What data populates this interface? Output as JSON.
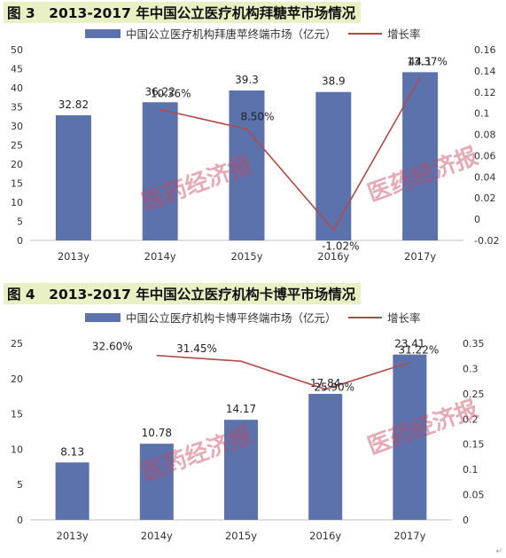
{
  "figures": [
    {
      "title": "图 3　2013-2017 年中国公立医疗机构拜糖苹市场情况",
      "watermark": "医药经济报",
      "chart_data": {
        "type": "bar",
        "categories": [
          "2013y",
          "2014y",
          "2015y",
          "2016y",
          "2017y"
        ],
        "series": [
          {
            "name": "中国公立医疗机构拜唐苹终端市场（亿元）",
            "type": "bar",
            "axis": "left",
            "values": [
              32.82,
              36.22,
              39.3,
              38.9,
              44.1
            ],
            "labels": [
              "32.82",
              "36.22",
              "39.3",
              "38.9",
              "44.1"
            ]
          },
          {
            "name": "增长率",
            "type": "line",
            "axis": "right",
            "values": [
              null,
              0.1036,
              0.085,
              -0.0102,
              0.1337
            ],
            "labels": [
              "",
              "10.36%",
              "8.50%",
              "-1.02%",
              "13.37%"
            ]
          }
        ],
        "ylim": [
          0,
          50
        ],
        "yticks": [
          0,
          5,
          10,
          15,
          20,
          25,
          30,
          35,
          40,
          45,
          50
        ],
        "y2lim": [
          -0.02,
          0.16
        ],
        "y2ticks": [
          "-0.02",
          "0",
          "0.02",
          "0.04",
          "0.06",
          "0.08",
          "0.1",
          "0.12",
          "0.14",
          "0.16"
        ],
        "legend": "top",
        "grid": false,
        "colors": {
          "bar": "#5b72ad",
          "line": "#b24a4a"
        }
      }
    },
    {
      "title": "图 4　2013-2017 年中国公立医疗机构卡博平市场情况",
      "watermark": "医药经济报",
      "chart_data": {
        "type": "bar",
        "categories": [
          "2013y",
          "2014y",
          "2015y",
          "2016y",
          "2017y"
        ],
        "series": [
          {
            "name": "中国公立医疗机构卡博平终端市场（亿元）",
            "type": "bar",
            "axis": "left",
            "values": [
              8.13,
              10.78,
              14.17,
              17.84,
              23.41
            ],
            "labels": [
              "8.13",
              "10.78",
              "14.17",
              "17.84",
              "23.41"
            ]
          },
          {
            "name": "增长率",
            "type": "line",
            "axis": "right",
            "values": [
              null,
              0.326,
              0.3145,
              0.259,
              0.3122
            ],
            "labels": [
              "",
              "32.60%",
              "31.45%",
              "25.90%",
              "31.22%"
            ]
          }
        ],
        "ylim": [
          0,
          25
        ],
        "yticks": [
          0,
          5,
          10,
          15,
          20,
          25
        ],
        "y2lim": [
          0,
          0.35
        ],
        "y2ticks": [
          "0",
          "0.05",
          "0.1",
          "0.15",
          "0.2",
          "0.25",
          "0.3",
          "0.35"
        ],
        "legend": "top",
        "grid": false,
        "colors": {
          "bar": "#5b72ad",
          "line": "#b24a4a"
        }
      }
    }
  ],
  "corner_mark": "↵"
}
